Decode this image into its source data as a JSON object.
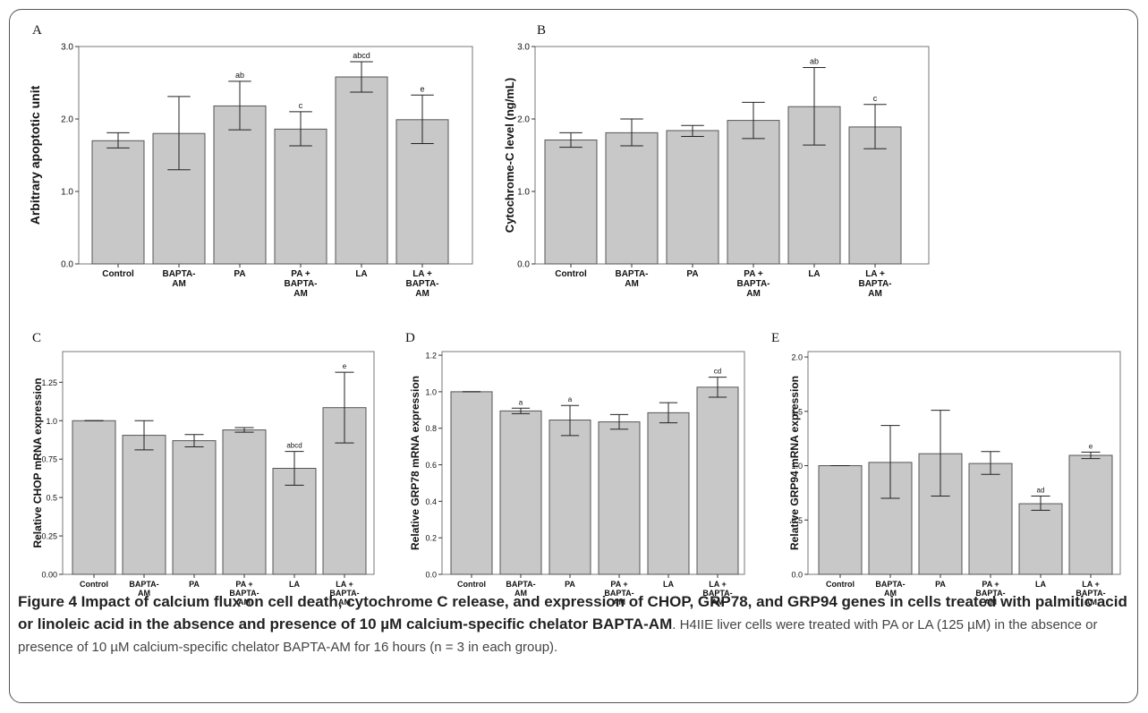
{
  "caption": {
    "figure_label": "Figure 4",
    "title": "Impact of calcium flux on cell death, cytochrome C release, and expression of CHOP, GRP78, and GRP94 genes in cells treated with palmitic acid or linoleic acid in the absence and presence of 10 µM calcium-specific chelator BAPTA-AM",
    "body": ". H4IIE liver cells were treated with PA or LA (125 µM) in the absence or presence of 10 µM calcium-specific chelator BAPTA-AM for 16 hours (n = 3 in each group)."
  },
  "chart_data": [
    {
      "panel": "A",
      "type": "bar",
      "ylabel": "Arbitrary apoptotic unit",
      "ylim": [
        0,
        3
      ],
      "yticks": [
        "0.0",
        "1.0",
        "2.0",
        "3.0"
      ],
      "categories": [
        [
          "Control"
        ],
        [
          "BAPTA-",
          "AM"
        ],
        [
          "PA"
        ],
        [
          "PA +",
          "BAPTA-",
          "AM"
        ],
        [
          "LA"
        ],
        [
          "LA +",
          "BAPTA-",
          "AM"
        ]
      ],
      "values": [
        1.7,
        1.8,
        2.18,
        1.86,
        2.58,
        1.99
      ],
      "err_low": [
        1.6,
        1.3,
        1.85,
        1.63,
        2.37,
        1.66
      ],
      "err_high": [
        1.81,
        2.31,
        2.52,
        2.1,
        2.79,
        2.33
      ],
      "annotations": [
        "",
        "",
        "ab",
        "c",
        "abcd",
        "e"
      ]
    },
    {
      "panel": "B",
      "type": "bar",
      "ylabel": "Cytochrome-C level (ng/mL)",
      "ylim": [
        0,
        3
      ],
      "yticks": [
        "0.0",
        "1.0",
        "2.0",
        "3.0"
      ],
      "categories": [
        [
          "Control"
        ],
        [
          "BAPTA-",
          "AM"
        ],
        [
          "PA"
        ],
        [
          "PA +",
          "BAPTA-",
          "AM"
        ],
        [
          "LA"
        ],
        [
          "LA +",
          "BAPTA-",
          "AM"
        ]
      ],
      "values": [
        1.71,
        1.81,
        1.84,
        1.98,
        2.17,
        1.89
      ],
      "err_low": [
        1.61,
        1.63,
        1.76,
        1.73,
        1.64,
        1.59
      ],
      "err_high": [
        1.81,
        2.0,
        1.91,
        2.23,
        2.71,
        2.2
      ],
      "annotations": [
        "",
        "",
        "",
        "",
        "ab",
        "c"
      ]
    },
    {
      "panel": "C",
      "type": "bar",
      "ylabel": "Relative CHOP mRNA expression",
      "ylim": [
        0,
        1.45
      ],
      "yticks": [
        "0.00",
        "0.25",
        "0.5",
        "0.75",
        "1.0",
        "1.25"
      ],
      "categories": [
        [
          "Control"
        ],
        [
          "BAPTA-",
          "AM"
        ],
        [
          "PA"
        ],
        [
          "PA +",
          "BAPTA-",
          "AM"
        ],
        [
          "LA"
        ],
        [
          "LA +",
          "BAPTA-",
          "AM"
        ]
      ],
      "values": [
        1.0,
        0.905,
        0.87,
        0.94,
        0.69,
        1.085
      ],
      "err_low": [
        1.0,
        0.81,
        0.83,
        0.925,
        0.58,
        0.855
      ],
      "err_high": [
        1.0,
        1.0,
        0.91,
        0.955,
        0.8,
        1.315
      ],
      "annotations": [
        "",
        "",
        "",
        "",
        "abcd",
        "e"
      ]
    },
    {
      "panel": "D",
      "type": "bar",
      "ylabel": "Relative GRP78 mRNA expression",
      "ylim": [
        0,
        1.22
      ],
      "yticks": [
        "0.0",
        "0.2",
        "0.4",
        "0.6",
        "0.8",
        "1.0",
        "1.2"
      ],
      "categories": [
        [
          "Control"
        ],
        [
          "BAPTA-",
          "AM"
        ],
        [
          "PA"
        ],
        [
          "PA +",
          "BAPTA-",
          "AM"
        ],
        [
          "LA"
        ],
        [
          "LA +",
          "BAPTA-",
          "AM"
        ]
      ],
      "values": [
        1.0,
        0.895,
        0.845,
        0.835,
        0.885,
        1.025
      ],
      "err_low": [
        1.0,
        0.88,
        0.76,
        0.795,
        0.83,
        0.97
      ],
      "err_high": [
        1.0,
        0.91,
        0.925,
        0.875,
        0.94,
        1.08
      ],
      "annotations": [
        "",
        "a",
        "a",
        "",
        "",
        "cd"
      ]
    },
    {
      "panel": "E",
      "type": "bar",
      "ylabel": "Relative GRP94 mRNA expression",
      "ylim": [
        0,
        2.05
      ],
      "yticks": [
        "0.0",
        "0.5",
        "1.0",
        "1.5",
        "2.0"
      ],
      "categories": [
        [
          "Control"
        ],
        [
          "BAPTA-",
          "AM"
        ],
        [
          "PA"
        ],
        [
          "PA +",
          "BAPTA-",
          "AM"
        ],
        [
          "LA"
        ],
        [
          "LA +",
          "BAPTA-",
          "AM"
        ]
      ],
      "values": [
        1.0,
        1.03,
        1.11,
        1.02,
        0.65,
        1.095
      ],
      "err_low": [
        1.0,
        0.7,
        0.72,
        0.92,
        0.59,
        1.065
      ],
      "err_high": [
        1.0,
        1.37,
        1.51,
        1.13,
        0.72,
        1.125
      ],
      "annotations": [
        "",
        "",
        "",
        "",
        "ad",
        "e"
      ]
    }
  ]
}
